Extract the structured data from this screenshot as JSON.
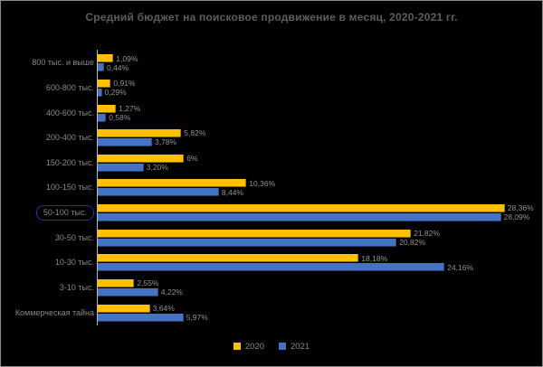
{
  "window": {
    "background": "#000000",
    "frame_border_color": "#8c8c8c"
  },
  "chart_data": {
    "type": "bar",
    "orientation": "horizontal",
    "title": "Средний бюджет на поисковое продвижение в месяц, 2020-2021 гг.",
    "categories": [
      "800 тыс. и выше",
      "600-800 тыс.",
      "400-600 тыс.",
      "200-400 тыс.",
      "150-200 тыс.",
      "100-150 тыс.",
      "50-100 тыс.",
      "30-50 тыс.",
      "10-30 тыс.",
      "3-10 тыс.",
      "Коммерческая тайна"
    ],
    "series": [
      {
        "name": "2020",
        "color": "#FFC000",
        "values": [
          1.09,
          0.91,
          1.27,
          5.82,
          6,
          10.36,
          28.36,
          21.82,
          18.18,
          2.55,
          3.64
        ],
        "labels": [
          "1,09%",
          "0,91%",
          "1,27%",
          "5,82%",
          "6%",
          "10,36%",
          "28,36%",
          "21,82%",
          "18,18%",
          "2,55%",
          "3,64%"
        ]
      },
      {
        "name": "2021",
        "color": "#4472C4",
        "values": [
          0.44,
          0.29,
          0.58,
          3.78,
          3.2,
          8.44,
          28.09,
          20.82,
          24.16,
          4.22,
          5.97
        ],
        "labels": [
          "0,44%",
          "0,29%",
          "0,58%",
          "3,78%",
          "3,20%",
          "8,44%",
          "28,09%",
          "20,82%",
          "24,16%",
          "4,22%",
          "5,97%"
        ]
      }
    ],
    "highlighted_category": "50-100 тыс.",
    "highlight_color": "#2d2da6",
    "xlim": [
      0,
      30
    ],
    "grid": false,
    "legend_position": "bottom-center",
    "value_label_format": "percent-comma-decimal",
    "text_colors": {
      "title": "#5d5d5d",
      "category_labels": "#878787",
      "value_labels": "#929292",
      "legend": "#878787"
    }
  }
}
